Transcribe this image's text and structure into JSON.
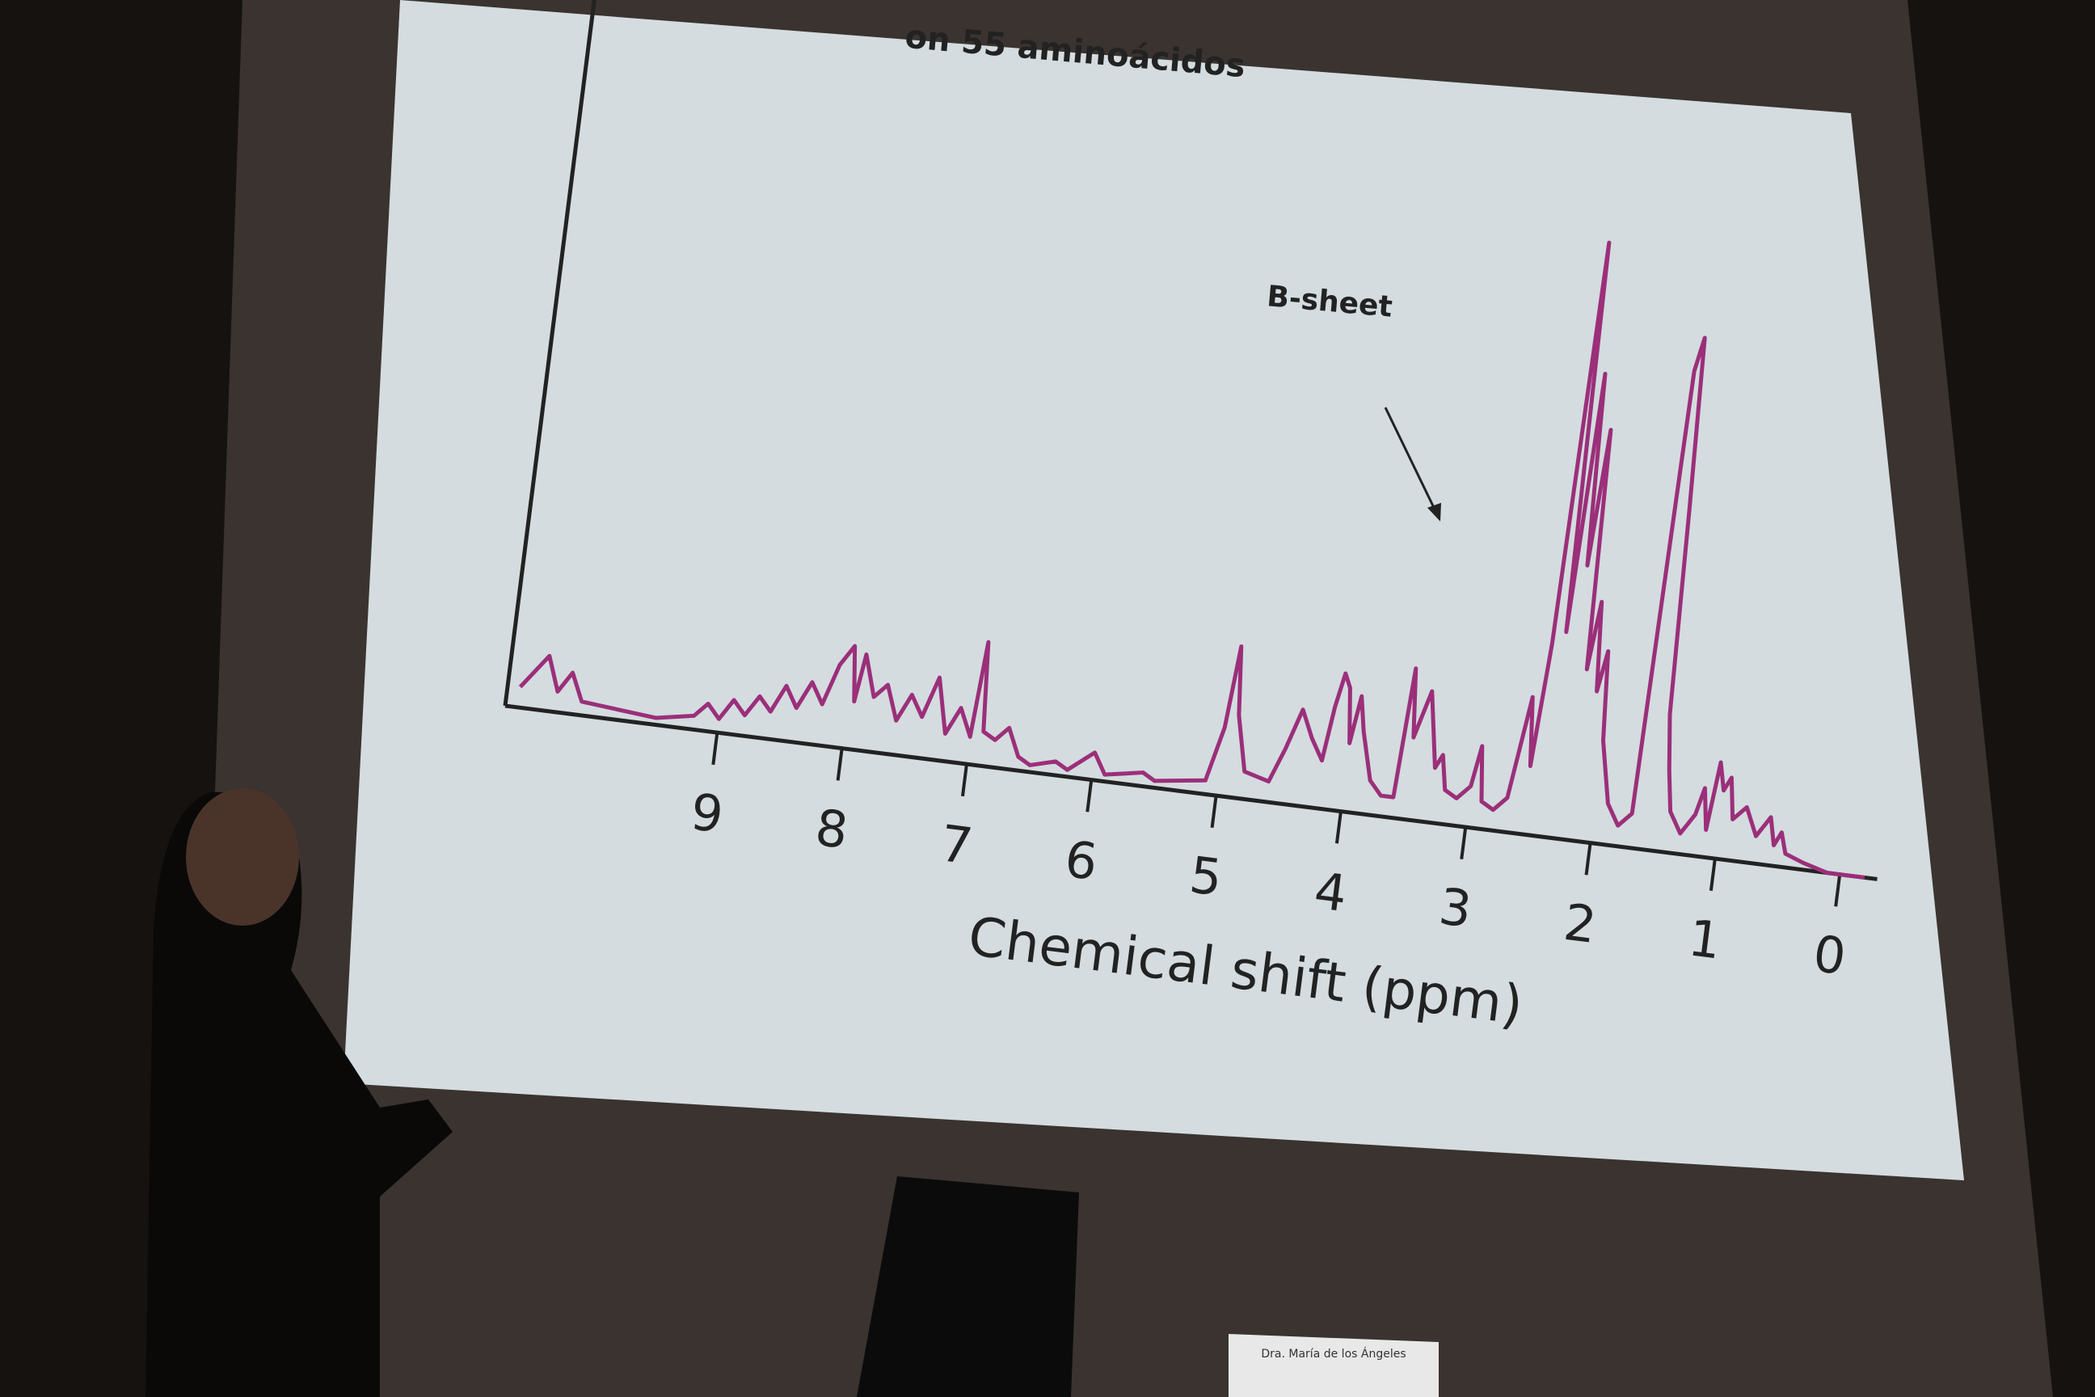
{
  "chart_data": {
    "type": "line",
    "title": "on 55 aminoácidos",
    "x_label": "Chemical shift (ppm)",
    "annotation": "B-sheet",
    "color": "#9b2f7a",
    "x": [
      10.6,
      10.4,
      10.3,
      10.2,
      10.1,
      9.5,
      9.2,
      9.1,
      9.0,
      8.9,
      8.8,
      8.7,
      8.6,
      8.5,
      8.4,
      8.3,
      8.2,
      8.1,
      8.0,
      7.95,
      7.9,
      7.8,
      7.7,
      7.6,
      7.5,
      7.4,
      7.3,
      7.2,
      7.1,
      7.0,
      6.95,
      6.9,
      6.8,
      6.7,
      6.6,
      6.5,
      6.3,
      6.2,
      6.0,
      5.9,
      5.6,
      5.5,
      5.1,
      5.0,
      4.95,
      4.9,
      4.8,
      4.6,
      4.5,
      4.4,
      4.3,
      4.2,
      4.15,
      4.1,
      4.05,
      4.0,
      3.95,
      3.9,
      3.8,
      3.7,
      3.6,
      3.55,
      3.5,
      3.4,
      3.3,
      3.25,
      3.2,
      3.1,
      3.0,
      2.95,
      2.9,
      2.8,
      2.7,
      2.6,
      2.55,
      2.5,
      2.45,
      2.4,
      2.35,
      2.3,
      2.25,
      2.2,
      2.15,
      2.1,
      2.05,
      2.0,
      1.9,
      1.8,
      1.7,
      1.65,
      1.6,
      1.55,
      1.5,
      1.45,
      1.4,
      1.3,
      1.2,
      1.15,
      1.1,
      1.05,
      1.0,
      0.95,
      0.9,
      0.8,
      0.7,
      0.6,
      0.55,
      0.5,
      0.45,
      0.3,
      0.1,
      -0.2
    ],
    "values": [
      3,
      8,
      3,
      6,
      2,
      1,
      2,
      4,
      2,
      5,
      3,
      6,
      4,
      8,
      5,
      9,
      6,
      12,
      15,
      7,
      14,
      8,
      10,
      5,
      9,
      6,
      12,
      4,
      8,
      4,
      18,
      5,
      4,
      6,
      2,
      1,
      2,
      1,
      4,
      1,
      2,
      1,
      2,
      10,
      22,
      12,
      4,
      3,
      8,
      14,
      10,
      7,
      15,
      20,
      18,
      10,
      17,
      12,
      5,
      3,
      3,
      22,
      12,
      19,
      8,
      10,
      5,
      4,
      6,
      12,
      4,
      3,
      5,
      20,
      10,
      28,
      87,
      30,
      68,
      40,
      60,
      25,
      35,
      22,
      28,
      15,
      6,
      3,
      5,
      70,
      75,
      50,
      20,
      12,
      6,
      3,
      6,
      10,
      4,
      14,
      10,
      12,
      6,
      8,
      4,
      7,
      3,
      5,
      2,
      1,
      0,
      0
    ],
    "xlim": [
      10.7,
      -0.3
    ],
    "xticks": [
      9,
      8,
      7,
      6,
      5,
      4,
      3,
      2,
      1,
      0
    ],
    "ylim": [
      0,
      100
    ]
  },
  "nameplate": "Dra. María de los Ángeles"
}
